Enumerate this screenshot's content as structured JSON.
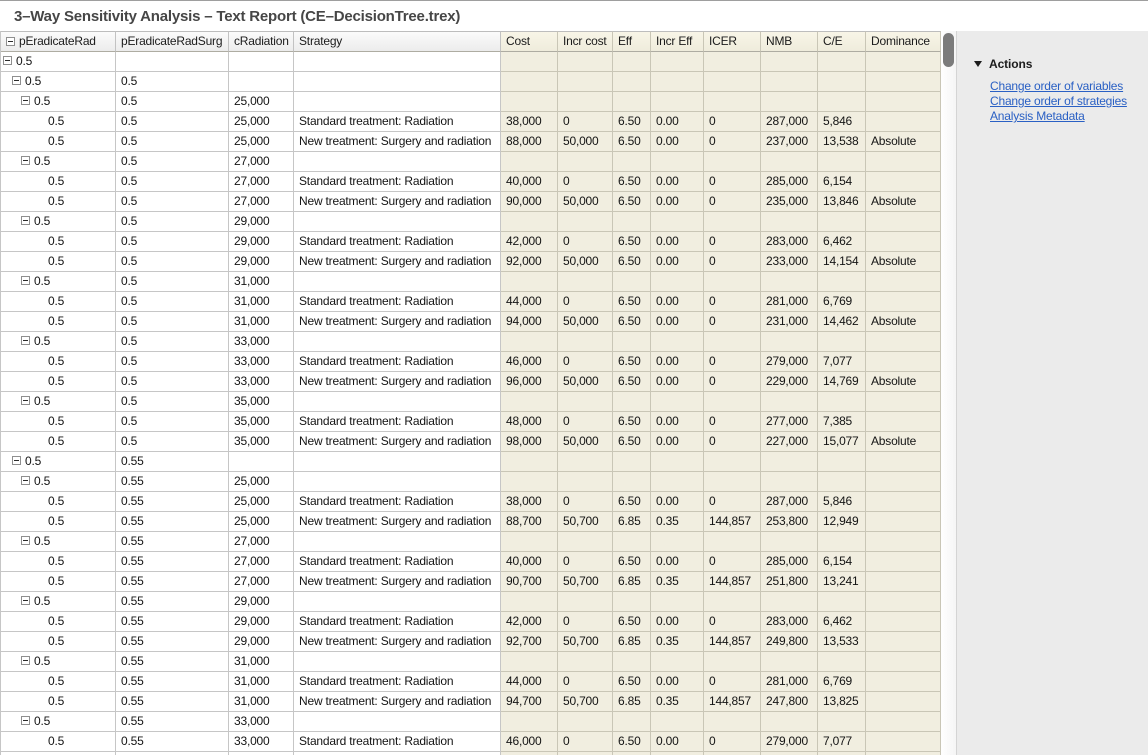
{
  "title": "3–Way Sensitivity Analysis – Text Report (CE–DecisionTree.trex)",
  "table": {
    "columns": [
      "pEradicateRad",
      "pEradicateRadSurg",
      "cRadiation",
      "Strategy",
      "Cost",
      "Incr cost",
      "Eff",
      "Incr Eff",
      "ICER",
      "NMB",
      "C/E",
      "Dominance"
    ],
    "rows": [
      {
        "level": 0,
        "group": true,
        "cells": [
          "0.5",
          "",
          "",
          "",
          "",
          "",
          "",
          "",
          "",
          "",
          "",
          ""
        ]
      },
      {
        "level": 1,
        "group": true,
        "cells": [
          "0.5",
          "0.5",
          "",
          "",
          "",
          "",
          "",
          "",
          "",
          "",
          "",
          ""
        ]
      },
      {
        "level": 2,
        "group": true,
        "cells": [
          "0.5",
          "0.5",
          "25,000",
          "",
          "",
          "",
          "",
          "",
          "",
          "",
          "",
          ""
        ]
      },
      {
        "level": 3,
        "group": false,
        "cells": [
          "0.5",
          "0.5",
          "25,000",
          "Standard treatment: Radiation",
          "38,000",
          "0",
          "6.50",
          "0.00",
          "0",
          "287,000",
          "5,846",
          ""
        ]
      },
      {
        "level": 3,
        "group": false,
        "cells": [
          "0.5",
          "0.5",
          "25,000",
          "New treatment: Surgery and radiation",
          "88,000",
          "50,000",
          "6.50",
          "0.00",
          "0",
          "237,000",
          "13,538",
          "Absolute"
        ]
      },
      {
        "level": 2,
        "group": true,
        "cells": [
          "0.5",
          "0.5",
          "27,000",
          "",
          "",
          "",
          "",
          "",
          "",
          "",
          "",
          ""
        ]
      },
      {
        "level": 3,
        "group": false,
        "cells": [
          "0.5",
          "0.5",
          "27,000",
          "Standard treatment: Radiation",
          "40,000",
          "0",
          "6.50",
          "0.00",
          "0",
          "285,000",
          "6,154",
          ""
        ]
      },
      {
        "level": 3,
        "group": false,
        "cells": [
          "0.5",
          "0.5",
          "27,000",
          "New treatment: Surgery and radiation",
          "90,000",
          "50,000",
          "6.50",
          "0.00",
          "0",
          "235,000",
          "13,846",
          "Absolute"
        ]
      },
      {
        "level": 2,
        "group": true,
        "cells": [
          "0.5",
          "0.5",
          "29,000",
          "",
          "",
          "",
          "",
          "",
          "",
          "",
          "",
          ""
        ]
      },
      {
        "level": 3,
        "group": false,
        "cells": [
          "0.5",
          "0.5",
          "29,000",
          "Standard treatment: Radiation",
          "42,000",
          "0",
          "6.50",
          "0.00",
          "0",
          "283,000",
          "6,462",
          ""
        ]
      },
      {
        "level": 3,
        "group": false,
        "cells": [
          "0.5",
          "0.5",
          "29,000",
          "New treatment: Surgery and radiation",
          "92,000",
          "50,000",
          "6.50",
          "0.00",
          "0",
          "233,000",
          "14,154",
          "Absolute"
        ]
      },
      {
        "level": 2,
        "group": true,
        "cells": [
          "0.5",
          "0.5",
          "31,000",
          "",
          "",
          "",
          "",
          "",
          "",
          "",
          "",
          ""
        ]
      },
      {
        "level": 3,
        "group": false,
        "cells": [
          "0.5",
          "0.5",
          "31,000",
          "Standard treatment: Radiation",
          "44,000",
          "0",
          "6.50",
          "0.00",
          "0",
          "281,000",
          "6,769",
          ""
        ]
      },
      {
        "level": 3,
        "group": false,
        "cells": [
          "0.5",
          "0.5",
          "31,000",
          "New treatment: Surgery and radiation",
          "94,000",
          "50,000",
          "6.50",
          "0.00",
          "0",
          "231,000",
          "14,462",
          "Absolute"
        ]
      },
      {
        "level": 2,
        "group": true,
        "cells": [
          "0.5",
          "0.5",
          "33,000",
          "",
          "",
          "",
          "",
          "",
          "",
          "",
          "",
          ""
        ]
      },
      {
        "level": 3,
        "group": false,
        "cells": [
          "0.5",
          "0.5",
          "33,000",
          "Standard treatment: Radiation",
          "46,000",
          "0",
          "6.50",
          "0.00",
          "0",
          "279,000",
          "7,077",
          ""
        ]
      },
      {
        "level": 3,
        "group": false,
        "cells": [
          "0.5",
          "0.5",
          "33,000",
          "New treatment: Surgery and radiation",
          "96,000",
          "50,000",
          "6.50",
          "0.00",
          "0",
          "229,000",
          "14,769",
          "Absolute"
        ]
      },
      {
        "level": 2,
        "group": true,
        "cells": [
          "0.5",
          "0.5",
          "35,000",
          "",
          "",
          "",
          "",
          "",
          "",
          "",
          "",
          ""
        ]
      },
      {
        "level": 3,
        "group": false,
        "cells": [
          "0.5",
          "0.5",
          "35,000",
          "Standard treatment: Radiation",
          "48,000",
          "0",
          "6.50",
          "0.00",
          "0",
          "277,000",
          "7,385",
          ""
        ]
      },
      {
        "level": 3,
        "group": false,
        "cells": [
          "0.5",
          "0.5",
          "35,000",
          "New treatment: Surgery and radiation",
          "98,000",
          "50,000",
          "6.50",
          "0.00",
          "0",
          "227,000",
          "15,077",
          "Absolute"
        ]
      },
      {
        "level": 1,
        "group": true,
        "cells": [
          "0.5",
          "0.55",
          "",
          "",
          "",
          "",
          "",
          "",
          "",
          "",
          "",
          ""
        ]
      },
      {
        "level": 2,
        "group": true,
        "cells": [
          "0.5",
          "0.55",
          "25,000",
          "",
          "",
          "",
          "",
          "",
          "",
          "",
          "",
          ""
        ]
      },
      {
        "level": 3,
        "group": false,
        "cells": [
          "0.5",
          "0.55",
          "25,000",
          "Standard treatment: Radiation",
          "38,000",
          "0",
          "6.50",
          "0.00",
          "0",
          "287,000",
          "5,846",
          ""
        ]
      },
      {
        "level": 3,
        "group": false,
        "cells": [
          "0.5",
          "0.55",
          "25,000",
          "New treatment: Surgery and radiation",
          "88,700",
          "50,700",
          "6.85",
          "0.35",
          "144,857",
          "253,800",
          "12,949",
          ""
        ]
      },
      {
        "level": 2,
        "group": true,
        "cells": [
          "0.5",
          "0.55",
          "27,000",
          "",
          "",
          "",
          "",
          "",
          "",
          "",
          "",
          ""
        ]
      },
      {
        "level": 3,
        "group": false,
        "cells": [
          "0.5",
          "0.55",
          "27,000",
          "Standard treatment: Radiation",
          "40,000",
          "0",
          "6.50",
          "0.00",
          "0",
          "285,000",
          "6,154",
          ""
        ]
      },
      {
        "level": 3,
        "group": false,
        "cells": [
          "0.5",
          "0.55",
          "27,000",
          "New treatment: Surgery and radiation",
          "90,700",
          "50,700",
          "6.85",
          "0.35",
          "144,857",
          "251,800",
          "13,241",
          ""
        ]
      },
      {
        "level": 2,
        "group": true,
        "cells": [
          "0.5",
          "0.55",
          "29,000",
          "",
          "",
          "",
          "",
          "",
          "",
          "",
          "",
          ""
        ]
      },
      {
        "level": 3,
        "group": false,
        "cells": [
          "0.5",
          "0.55",
          "29,000",
          "Standard treatment: Radiation",
          "42,000",
          "0",
          "6.50",
          "0.00",
          "0",
          "283,000",
          "6,462",
          ""
        ]
      },
      {
        "level": 3,
        "group": false,
        "cells": [
          "0.5",
          "0.55",
          "29,000",
          "New treatment: Surgery and radiation",
          "92,700",
          "50,700",
          "6.85",
          "0.35",
          "144,857",
          "249,800",
          "13,533",
          ""
        ]
      },
      {
        "level": 2,
        "group": true,
        "cells": [
          "0.5",
          "0.55",
          "31,000",
          "",
          "",
          "",
          "",
          "",
          "",
          "",
          "",
          ""
        ]
      },
      {
        "level": 3,
        "group": false,
        "cells": [
          "0.5",
          "0.55",
          "31,000",
          "Standard treatment: Radiation",
          "44,000",
          "0",
          "6.50",
          "0.00",
          "0",
          "281,000",
          "6,769",
          ""
        ]
      },
      {
        "level": 3,
        "group": false,
        "cells": [
          "0.5",
          "0.55",
          "31,000",
          "New treatment: Surgery and radiation",
          "94,700",
          "50,700",
          "6.85",
          "0.35",
          "144,857",
          "247,800",
          "13,825",
          ""
        ]
      },
      {
        "level": 2,
        "group": true,
        "cells": [
          "0.5",
          "0.55",
          "33,000",
          "",
          "",
          "",
          "",
          "",
          "",
          "",
          "",
          ""
        ]
      },
      {
        "level": 3,
        "group": false,
        "cells": [
          "0.5",
          "0.55",
          "33,000",
          "Standard treatment: Radiation",
          "46,000",
          "0",
          "6.50",
          "0.00",
          "0",
          "279,000",
          "7,077",
          ""
        ]
      },
      {
        "level": 3,
        "group": false,
        "cells": [
          "",
          "",
          "",
          "",
          "",
          "",
          "",
          "",
          "",
          "",
          "",
          ""
        ]
      }
    ]
  },
  "actions_panel": {
    "header": "Actions",
    "links": [
      "Change order of variables",
      "Change order of strategies",
      "Analysis Metadata"
    ]
  },
  "colors": {
    "results_column_bg": "#f1eee0",
    "link_blue": "#2a60c4",
    "panel_bg": "#ebebeb",
    "grid_line": "#c6c6c6"
  }
}
